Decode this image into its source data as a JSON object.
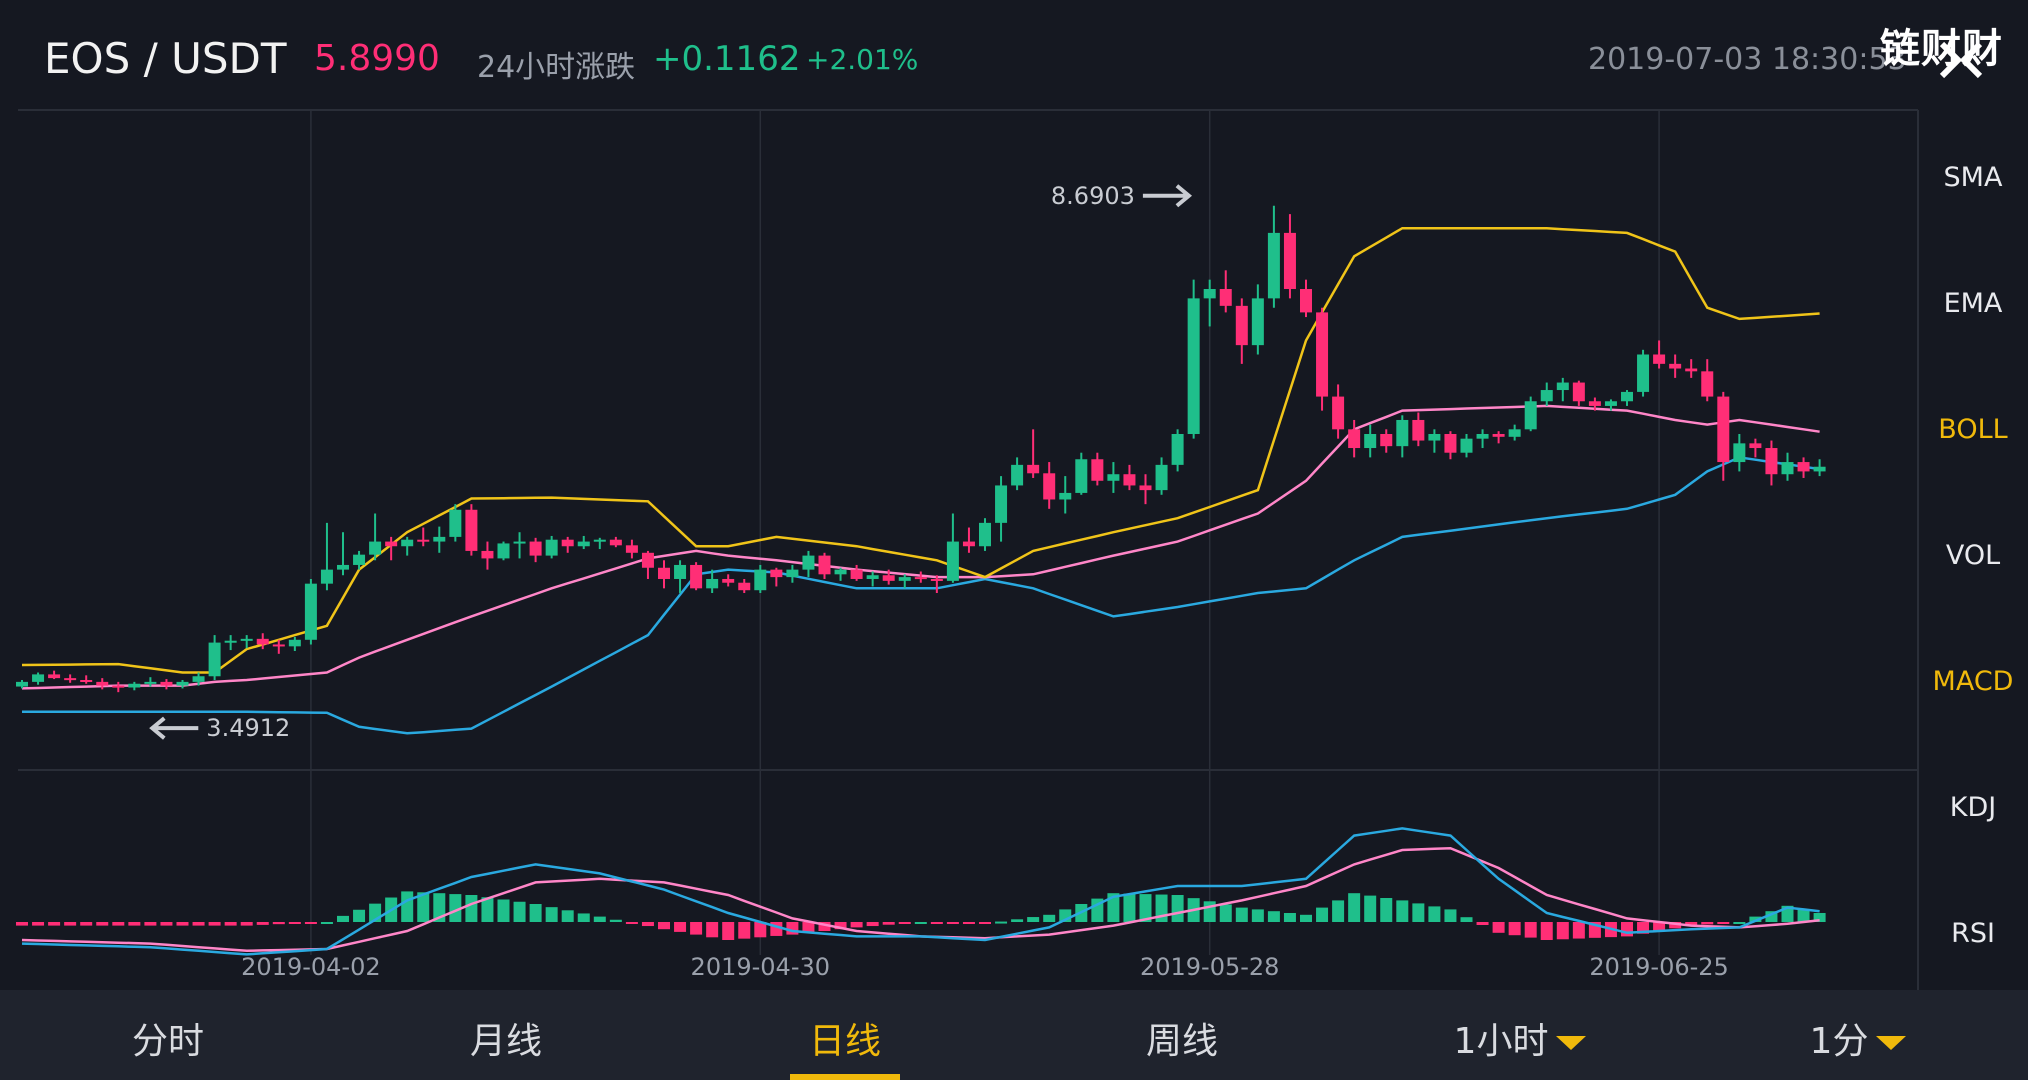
{
  "header": {
    "pair": "EOS / USDT",
    "price": "5.8990",
    "change_label": "24小时涨跌",
    "change_abs": "+0.1162",
    "change_pct": "+2.01%",
    "timestamp": "2019-07-03 18:30:53",
    "brand": "链财财",
    "close_icon": "close-icon"
  },
  "colors": {
    "up": "#1fbf8b",
    "down": "#ff2e76",
    "boll_upper": "#f0c419",
    "boll_mid": "#ff86c8",
    "boll_lower": "#2aa9e0",
    "dif": "#2aa9e0",
    "dea": "#ff86c8",
    "accent": "#f0b90b",
    "price_text": "#ff2e76",
    "change_text": "#1fbf8b",
    "background": "#151821"
  },
  "indicators": {
    "items": [
      {
        "label": "SMA",
        "active": false
      },
      {
        "label": "EMA",
        "active": false
      },
      {
        "label": "BOLL",
        "active": true
      },
      {
        "label": "VOL",
        "active": false
      },
      {
        "label": "MACD",
        "active": true
      },
      {
        "label": "KDJ",
        "active": false
      },
      {
        "label": "RSI",
        "active": false
      }
    ]
  },
  "timeframes": {
    "items": [
      {
        "label": "分时",
        "active": false,
        "dropdown": false
      },
      {
        "label": "月线",
        "active": false,
        "dropdown": false
      },
      {
        "label": "日线",
        "active": true,
        "dropdown": false
      },
      {
        "label": "周线",
        "active": false,
        "dropdown": false
      },
      {
        "label": "1小时",
        "active": false,
        "dropdown": true
      },
      {
        "label": "1分",
        "active": false,
        "dropdown": true
      }
    ]
  },
  "chart_data": {
    "type": "candlestick",
    "interval": "1d",
    "price_range": [
      3.0,
      9.5
    ],
    "x_ticks": [
      {
        "label": "2019-04-02",
        "index": 18
      },
      {
        "label": "2019-04-30",
        "index": 46
      },
      {
        "label": "2019-05-28",
        "index": 74
      },
      {
        "label": "2019-06-25",
        "index": 102
      }
    ],
    "annotations": {
      "max": "8.6903",
      "min": "3.4912"
    },
    "ohlc": [
      [
        3.55,
        3.62,
        3.53,
        3.6
      ],
      [
        3.6,
        3.7,
        3.57,
        3.68
      ],
      [
        3.68,
        3.72,
        3.63,
        3.64
      ],
      [
        3.64,
        3.68,
        3.59,
        3.62
      ],
      [
        3.62,
        3.67,
        3.58,
        3.6
      ],
      [
        3.6,
        3.64,
        3.52,
        3.56
      ],
      [
        3.56,
        3.6,
        3.49,
        3.54
      ],
      [
        3.54,
        3.6,
        3.51,
        3.58
      ],
      [
        3.58,
        3.65,
        3.55,
        3.6
      ],
      [
        3.6,
        3.63,
        3.52,
        3.56
      ],
      [
        3.56,
        3.62,
        3.53,
        3.6
      ],
      [
        3.6,
        3.7,
        3.56,
        3.66
      ],
      [
        3.66,
        4.1,
        3.62,
        4.02
      ],
      [
        4.02,
        4.1,
        3.94,
        4.04
      ],
      [
        4.04,
        4.1,
        3.96,
        4.06
      ],
      [
        4.06,
        4.12,
        3.95,
        4.0
      ],
      [
        4.0,
        4.05,
        3.9,
        3.98
      ],
      [
        3.98,
        4.08,
        3.93,
        4.05
      ],
      [
        4.05,
        4.7,
        4.0,
        4.65
      ],
      [
        4.65,
        5.3,
        4.58,
        4.8
      ],
      [
        4.8,
        5.2,
        4.74,
        4.85
      ],
      [
        4.85,
        5.0,
        4.8,
        4.96
      ],
      [
        4.96,
        5.4,
        4.9,
        5.1
      ],
      [
        5.1,
        5.15,
        4.9,
        5.05
      ],
      [
        5.05,
        5.15,
        4.95,
        5.12
      ],
      [
        5.12,
        5.25,
        5.05,
        5.1
      ],
      [
        5.1,
        5.26,
        4.98,
        5.15
      ],
      [
        5.15,
        5.5,
        5.1,
        5.44
      ],
      [
        5.44,
        5.5,
        4.95,
        5.0
      ],
      [
        5.0,
        5.1,
        4.8,
        4.92
      ],
      [
        4.92,
        5.1,
        4.9,
        5.08
      ],
      [
        5.08,
        5.2,
        4.92,
        5.1
      ],
      [
        5.1,
        5.14,
        4.88,
        4.95
      ],
      [
        4.95,
        5.16,
        4.92,
        5.12
      ],
      [
        5.12,
        5.15,
        4.98,
        5.05
      ],
      [
        5.05,
        5.16,
        5.02,
        5.1
      ],
      [
        5.1,
        5.14,
        5.02,
        5.12
      ],
      [
        5.12,
        5.15,
        5.04,
        5.06
      ],
      [
        5.06,
        5.12,
        4.92,
        4.98
      ],
      [
        4.98,
        5.0,
        4.7,
        4.82
      ],
      [
        4.82,
        4.9,
        4.6,
        4.7
      ],
      [
        4.7,
        4.9,
        4.55,
        4.85
      ],
      [
        4.85,
        4.88,
        4.58,
        4.6
      ],
      [
        4.6,
        4.8,
        4.55,
        4.7
      ],
      [
        4.7,
        4.75,
        4.62,
        4.66
      ],
      [
        4.66,
        4.7,
        4.55,
        4.58
      ],
      [
        4.58,
        4.85,
        4.55,
        4.8
      ],
      [
        4.8,
        4.82,
        4.62,
        4.72
      ],
      [
        4.72,
        4.85,
        4.66,
        4.8
      ],
      [
        4.8,
        5.0,
        4.72,
        4.95
      ],
      [
        4.95,
        4.98,
        4.7,
        4.75
      ],
      [
        4.75,
        4.82,
        4.68,
        4.8
      ],
      [
        4.8,
        4.85,
        4.68,
        4.7
      ],
      [
        4.7,
        4.78,
        4.62,
        4.74
      ],
      [
        4.74,
        4.8,
        4.64,
        4.68
      ],
      [
        4.68,
        4.75,
        4.6,
        4.72
      ],
      [
        4.72,
        4.78,
        4.66,
        4.7
      ],
      [
        4.7,
        4.74,
        4.55,
        4.68
      ],
      [
        4.68,
        5.4,
        4.66,
        5.1
      ],
      [
        5.1,
        5.25,
        4.98,
        5.05
      ],
      [
        5.05,
        5.35,
        5.0,
        5.3
      ],
      [
        5.3,
        5.8,
        5.1,
        5.7
      ],
      [
        5.7,
        6.0,
        5.65,
        5.92
      ],
      [
        5.92,
        6.3,
        5.78,
        5.83
      ],
      [
        5.83,
        5.95,
        5.45,
        5.55
      ],
      [
        5.55,
        5.8,
        5.4,
        5.62
      ],
      [
        5.62,
        6.05,
        5.6,
        5.98
      ],
      [
        5.98,
        6.05,
        5.7,
        5.75
      ],
      [
        5.75,
        5.95,
        5.62,
        5.82
      ],
      [
        5.82,
        5.92,
        5.65,
        5.7
      ],
      [
        5.7,
        5.82,
        5.5,
        5.65
      ],
      [
        5.65,
        6.0,
        5.6,
        5.92
      ],
      [
        5.92,
        6.3,
        5.85,
        6.25
      ],
      [
        6.25,
        7.9,
        6.2,
        7.7
      ],
      [
        7.7,
        7.9,
        7.4,
        7.8
      ],
      [
        7.8,
        8.0,
        7.55,
        7.62
      ],
      [
        7.62,
        7.7,
        7.0,
        7.2
      ],
      [
        7.2,
        7.85,
        7.1,
        7.7
      ],
      [
        7.7,
        8.69,
        7.6,
        8.4
      ],
      [
        8.4,
        8.6,
        7.7,
        7.8
      ],
      [
        7.8,
        7.9,
        7.5,
        7.55
      ],
      [
        7.55,
        7.6,
        6.5,
        6.65
      ],
      [
        6.65,
        6.78,
        6.2,
        6.3
      ],
      [
        6.3,
        6.4,
        6.0,
        6.1
      ],
      [
        6.1,
        6.35,
        6.0,
        6.25
      ],
      [
        6.25,
        6.3,
        6.05,
        6.12
      ],
      [
        6.12,
        6.45,
        6.0,
        6.4
      ],
      [
        6.4,
        6.48,
        6.12,
        6.18
      ],
      [
        6.18,
        6.3,
        6.05,
        6.25
      ],
      [
        6.25,
        6.28,
        5.98,
        6.05
      ],
      [
        6.05,
        6.25,
        6.0,
        6.2
      ],
      [
        6.2,
        6.3,
        6.1,
        6.25
      ],
      [
        6.25,
        6.28,
        6.15,
        6.22
      ],
      [
        6.22,
        6.35,
        6.18,
        6.3
      ],
      [
        6.3,
        6.65,
        6.28,
        6.6
      ],
      [
        6.6,
        6.8,
        6.55,
        6.72
      ],
      [
        6.72,
        6.85,
        6.6,
        6.8
      ],
      [
        6.8,
        6.82,
        6.55,
        6.6
      ],
      [
        6.6,
        6.64,
        6.5,
        6.55
      ],
      [
        6.55,
        6.62,
        6.5,
        6.6
      ],
      [
        6.6,
        6.72,
        6.55,
        6.7
      ],
      [
        6.7,
        7.15,
        6.65,
        7.1
      ],
      [
        7.1,
        7.25,
        6.95,
        7.0
      ],
      [
        7.0,
        7.1,
        6.85,
        6.95
      ],
      [
        6.95,
        7.05,
        6.85,
        6.92
      ],
      [
        6.92,
        7.05,
        6.6,
        6.65
      ],
      [
        6.65,
        6.7,
        5.75,
        5.95
      ],
      [
        5.95,
        6.25,
        5.85,
        6.15
      ],
      [
        6.15,
        6.2,
        6.0,
        6.1
      ],
      [
        6.1,
        6.18,
        5.7,
        5.82
      ],
      [
        5.82,
        6.05,
        5.75,
        5.95
      ],
      [
        5.95,
        6.0,
        5.78,
        5.85
      ],
      [
        5.85,
        5.98,
        5.8,
        5.9
      ]
    ],
    "boll": {
      "anchors": [
        [
          0,
          3.78,
          3.53,
          3.28
        ],
        [
          6,
          3.79,
          3.56,
          3.28
        ],
        [
          10,
          3.7,
          3.56,
          3.28
        ],
        [
          12,
          3.7,
          3.6,
          3.28
        ],
        [
          14,
          3.95,
          3.62,
          3.28
        ],
        [
          19,
          4.2,
          3.7,
          3.27
        ],
        [
          21,
          4.8,
          3.86,
          3.12
        ],
        [
          24,
          5.2,
          4.05,
          3.05
        ],
        [
          28,
          5.56,
          4.3,
          3.1
        ],
        [
          33,
          5.57,
          4.6,
          3.55
        ],
        [
          39,
          5.53,
          4.92,
          4.1
        ],
        [
          42,
          5.05,
          5.0,
          4.75
        ],
        [
          44,
          5.05,
          4.95,
          4.8
        ],
        [
          47,
          5.15,
          4.9,
          4.77
        ],
        [
          52,
          5.05,
          4.8,
          4.6
        ],
        [
          57,
          4.9,
          4.72,
          4.6
        ],
        [
          60,
          4.72,
          4.72,
          4.7
        ],
        [
          63,
          5.0,
          4.75,
          4.6
        ],
        [
          68,
          5.2,
          4.95,
          4.3
        ],
        [
          72,
          5.35,
          5.1,
          4.4
        ],
        [
          77,
          5.65,
          5.4,
          4.55
        ],
        [
          80,
          7.25,
          5.75,
          4.6
        ],
        [
          83,
          8.15,
          6.3,
          4.9
        ],
        [
          86,
          8.45,
          6.5,
          5.15
        ],
        [
          95,
          8.45,
          6.55,
          5.35
        ],
        [
          100,
          8.4,
          6.5,
          5.45
        ],
        [
          103,
          8.2,
          6.4,
          5.6
        ],
        [
          105,
          7.6,
          6.35,
          5.85
        ],
        [
          107,
          7.48,
          6.4,
          6.0
        ],
        [
          113,
          7.55,
          6.25,
          5.85
        ],
        [
          118,
          7.7,
          6.2,
          5.7
        ]
      ]
    },
    "macd": {
      "dif_anchors": [
        [
          0,
          -0.12
        ],
        [
          8,
          -0.14
        ],
        [
          14,
          -0.18
        ],
        [
          19,
          -0.15
        ],
        [
          24,
          0.12
        ],
        [
          28,
          0.25
        ],
        [
          32,
          0.32
        ],
        [
          36,
          0.27
        ],
        [
          40,
          0.18
        ],
        [
          44,
          0.05
        ],
        [
          48,
          -0.05
        ],
        [
          52,
          -0.08
        ],
        [
          56,
          -0.08
        ],
        [
          60,
          -0.1
        ],
        [
          64,
          -0.03
        ],
        [
          68,
          0.14
        ],
        [
          72,
          0.2
        ],
        [
          76,
          0.2
        ],
        [
          80,
          0.24
        ],
        [
          83,
          0.48
        ],
        [
          86,
          0.52
        ],
        [
          89,
          0.48
        ],
        [
          92,
          0.24
        ],
        [
          95,
          0.05
        ],
        [
          100,
          -0.06
        ],
        [
          104,
          -0.04
        ],
        [
          107,
          -0.03
        ],
        [
          110,
          0.08
        ],
        [
          113,
          0.05
        ],
        [
          116,
          -0.05
        ],
        [
          118,
          -0.15
        ]
      ],
      "dea_anchors": [
        [
          0,
          -0.1
        ],
        [
          8,
          -0.12
        ],
        [
          14,
          -0.16
        ],
        [
          19,
          -0.15
        ],
        [
          24,
          -0.05
        ],
        [
          28,
          0.1
        ],
        [
          32,
          0.22
        ],
        [
          36,
          0.24
        ],
        [
          40,
          0.22
        ],
        [
          44,
          0.15
        ],
        [
          48,
          0.02
        ],
        [
          52,
          -0.05
        ],
        [
          56,
          -0.08
        ],
        [
          60,
          -0.09
        ],
        [
          64,
          -0.07
        ],
        [
          68,
          -0.02
        ],
        [
          72,
          0.05
        ],
        [
          76,
          0.12
        ],
        [
          80,
          0.2
        ],
        [
          83,
          0.32
        ],
        [
          86,
          0.4
        ],
        [
          89,
          0.41
        ],
        [
          92,
          0.3
        ],
        [
          95,
          0.15
        ],
        [
          100,
          0.02
        ],
        [
          104,
          -0.02
        ],
        [
          107,
          -0.03
        ],
        [
          110,
          -0.01
        ],
        [
          113,
          0.02
        ],
        [
          116,
          -0.02
        ],
        [
          118,
          -0.1
        ]
      ]
    }
  }
}
